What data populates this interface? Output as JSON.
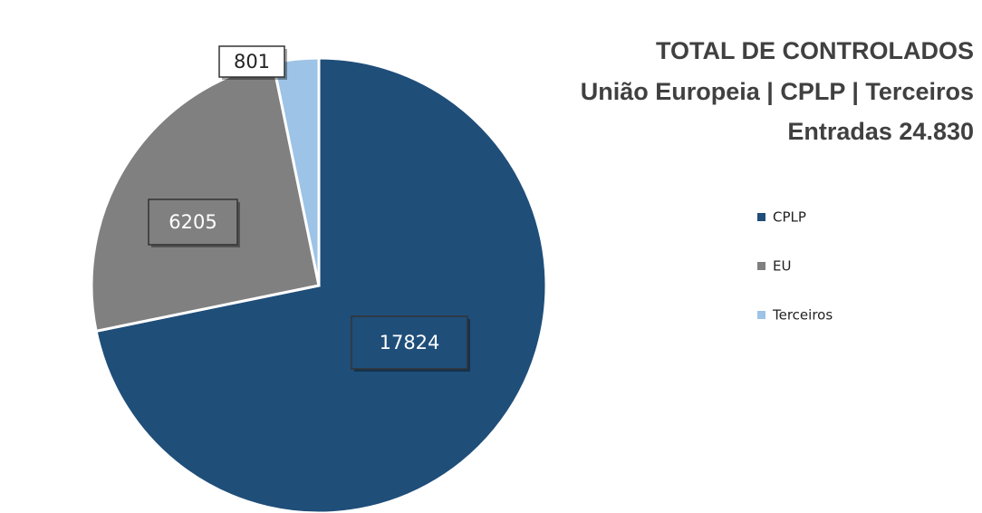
{
  "chart_data": {
    "type": "pie",
    "title": [
      "TOTAL DE CONTROLADOS",
      "União Europeia | CPLP | Terceiros",
      "Entradas 24.830"
    ],
    "categories": [
      "CPLP",
      "EU",
      "Terceiros"
    ],
    "values": [
      17824,
      6205,
      801
    ],
    "colors": [
      "#1f4e79",
      "#808080",
      "#9dc3e6"
    ],
    "legend": "right"
  }
}
